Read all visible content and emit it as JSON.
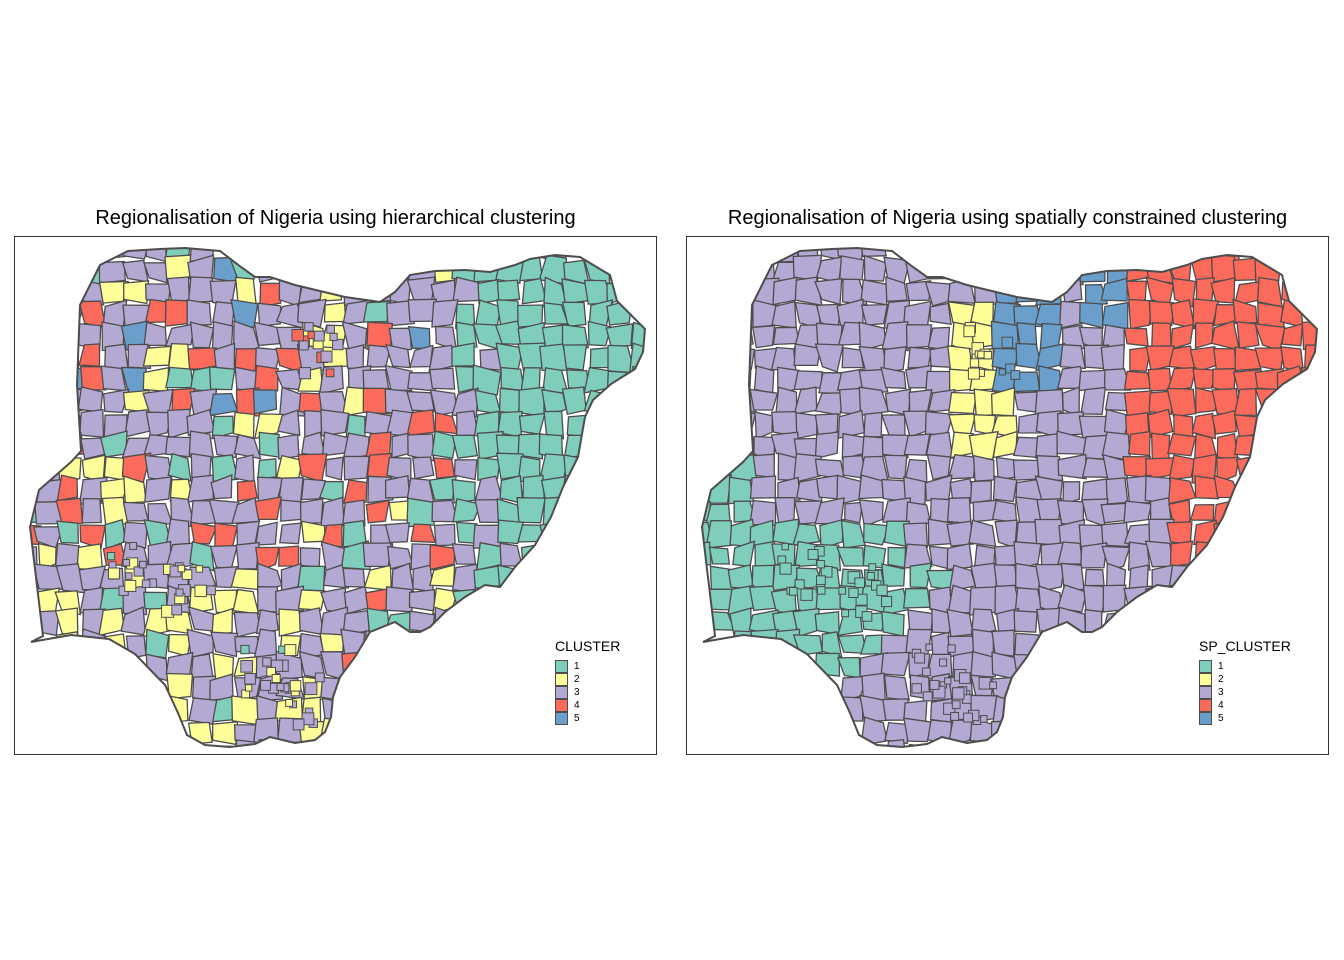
{
  "maps": [
    {
      "title": "Regionalisation of Nigeria using hierarchical clustering",
      "legend_title": "CLUSTER",
      "pattern": "mixed"
    },
    {
      "title": "Regionalisation of Nigeria using spatially constrained clustering",
      "legend_title": "SP_CLUSTER",
      "pattern": "regional"
    }
  ],
  "legend_items": [
    {
      "label": "1",
      "color": "#7fcdbb"
    },
    {
      "label": "2",
      "color": "#ffff99"
    },
    {
      "label": "3",
      "color": "#b3a9d3"
    },
    {
      "label": "4",
      "color": "#fb6a5a"
    },
    {
      "label": "5",
      "color": "#6a9ecb"
    }
  ],
  "border_color": "#4d4d4d"
}
